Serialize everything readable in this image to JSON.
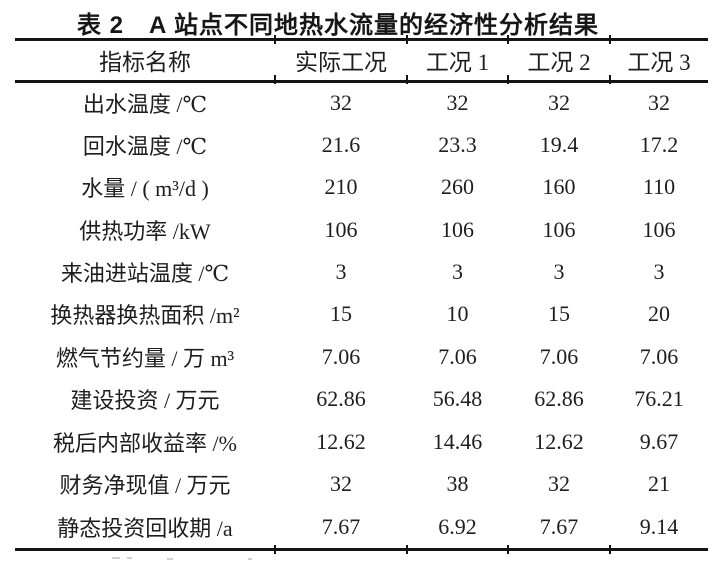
{
  "title": "表 2　A 站点不同地热水流量的经济性分析结果",
  "table": {
    "header": [
      "指标名称",
      "实际工况",
      "工况 1",
      "工况 2",
      "工况 3"
    ],
    "rows": [
      {
        "label": "出水温度 /℃",
        "values": [
          "32",
          "32",
          "32",
          "32"
        ]
      },
      {
        "label": "回水温度 /℃",
        "values": [
          "21.6",
          "23.3",
          "19.4",
          "17.2"
        ]
      },
      {
        "label": "水量 / ( m³/d )",
        "values": [
          "210",
          "260",
          "160",
          "110"
        ]
      },
      {
        "label": "供热功率 /kW",
        "values": [
          "106",
          "106",
          "106",
          "106"
        ]
      },
      {
        "label": "来油进站温度 /℃",
        "values": [
          "3",
          "3",
          "3",
          "3"
        ]
      },
      {
        "label": "换热器换热面积 /m²",
        "values": [
          "15",
          "10",
          "15",
          "20"
        ]
      },
      {
        "label": "燃气节约量 / 万 m³",
        "values": [
          "7.06",
          "7.06",
          "7.06",
          "7.06"
        ]
      },
      {
        "label": "建设投资 / 万元",
        "values": [
          "62.86",
          "56.48",
          "62.86",
          "76.21"
        ]
      },
      {
        "label": "税后内部收益率 /%",
        "values": [
          "12.62",
          "14.46",
          "12.62",
          "9.67"
        ]
      },
      {
        "label": "财务净现值 / 万元",
        "values": [
          "32",
          "38",
          "32",
          "21"
        ]
      },
      {
        "label": "静态投资回收期 /a",
        "values": [
          "7.67",
          "6.92",
          "7.67",
          "9.14"
        ]
      }
    ]
  },
  "colors": {
    "text": "#1e1e1e",
    "rule": "#141414",
    "background": "#ffffff"
  }
}
